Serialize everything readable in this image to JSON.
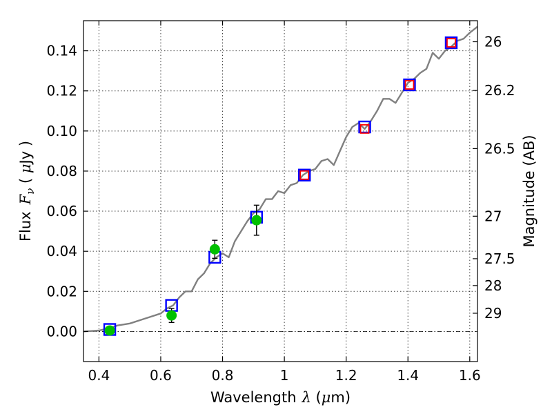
{
  "chart_data": {
    "type": "scatter",
    "xlabel": "Wavelength",
    "xlabel_math": "λ",
    "xlabel_unit_open": " (",
    "xlabel_unit_mu": "μ",
    "xlabel_unit_close": "m)",
    "ylabel": "Flux",
    "ylabel_math_base": "F",
    "ylabel_math_sub": "ν",
    "ylabel_unit_open": " ( ",
    "ylabel_unit_mu": "μ",
    "ylabel_unit_close": "Jy )",
    "y2label": "Magnitude (AB)",
    "xlim": [
      0.35,
      1.625
    ],
    "ylim": [
      -0.015,
      0.155
    ],
    "grid": true,
    "x_ticks": [
      0.4,
      0.6,
      0.8,
      1.0,
      1.2,
      1.4,
      1.6
    ],
    "x_tick_labels": [
      "0.4",
      "0.6",
      "0.8",
      "1",
      "1.2",
      "1.4",
      "1.6"
    ],
    "y_ticks": [
      0.0,
      0.02,
      0.04,
      0.06,
      0.08,
      0.1,
      0.12,
      0.14
    ],
    "y_tick_labels": [
      "0.00",
      "0.02",
      "0.04",
      "0.06",
      "0.08",
      "0.10",
      "0.12",
      "0.14"
    ],
    "y2_ticks": [
      {
        "label": "26",
        "flux": 0.1445
      },
      {
        "label": "26.2",
        "flux": 0.1202
      },
      {
        "label": "26.5",
        "flux": 0.0912
      },
      {
        "label": "27",
        "flux": 0.0575
      },
      {
        "label": "27.5",
        "flux": 0.0363
      },
      {
        "label": "28",
        "flux": 0.0229
      },
      {
        "label": "29",
        "flux": 0.0091
      }
    ],
    "zero_line": 0.0,
    "series": [
      {
        "role": "model spectrum",
        "kind": "line",
        "color": "#808080",
        "x": [
          0.35,
          0.4,
          0.43,
          0.46,
          0.5,
          0.54,
          0.56,
          0.6,
          0.62,
          0.64,
          0.66,
          0.68,
          0.7,
          0.72,
          0.74,
          0.76,
          0.78,
          0.8,
          0.82,
          0.84,
          0.86,
          0.88,
          0.9,
          0.92,
          0.94,
          0.96,
          0.98,
          1.0,
          1.02,
          1.04,
          1.06,
          1.08,
          1.1,
          1.12,
          1.14,
          1.16,
          1.18,
          1.2,
          1.22,
          1.24,
          1.26,
          1.28,
          1.3,
          1.32,
          1.34,
          1.36,
          1.38,
          1.4,
          1.42,
          1.44,
          1.46,
          1.48,
          1.5,
          1.52,
          1.54,
          1.56,
          1.58,
          1.6,
          1.625
        ],
        "y": [
          0.0,
          0.0005,
          0.0015,
          0.003,
          0.004,
          0.006,
          0.007,
          0.009,
          0.0115,
          0.013,
          0.017,
          0.02,
          0.02,
          0.026,
          0.029,
          0.034,
          0.037,
          0.039,
          0.037,
          0.045,
          0.05,
          0.055,
          0.059,
          0.061,
          0.066,
          0.066,
          0.07,
          0.069,
          0.073,
          0.074,
          0.078,
          0.08,
          0.081,
          0.085,
          0.086,
          0.083,
          0.09,
          0.097,
          0.102,
          0.104,
          0.101,
          0.105,
          0.11,
          0.116,
          0.116,
          0.114,
          0.119,
          0.124,
          0.126,
          0.129,
          0.131,
          0.139,
          0.136,
          0.14,
          0.142,
          0.145,
          0.146,
          0.149,
          0.152
        ]
      },
      {
        "role": "model photometry",
        "kind": "square-marker",
        "color": "#0000ff",
        "x": [
          0.435,
          0.635,
          0.775,
          0.91,
          1.065,
          1.26,
          1.405,
          1.54
        ],
        "y": [
          0.001,
          0.013,
          0.037,
          0.057,
          0.078,
          0.102,
          0.123,
          0.144
        ]
      },
      {
        "role": "photometry",
        "kind": "hollow-square-marker",
        "color": "#ff0000",
        "x": [
          1.065,
          1.26,
          1.405,
          1.54
        ],
        "y": [
          0.078,
          0.101,
          0.123,
          0.144
        ]
      },
      {
        "role": "measured flux",
        "kind": "circle-errorbar",
        "color": "#00c000",
        "x": [
          0.435,
          0.635,
          0.775,
          0.91
        ],
        "y": [
          0.0005,
          0.008,
          0.041,
          0.0555
        ],
        "err": [
          0.0005,
          0.0035,
          0.0045,
          0.0075
        ]
      }
    ]
  }
}
